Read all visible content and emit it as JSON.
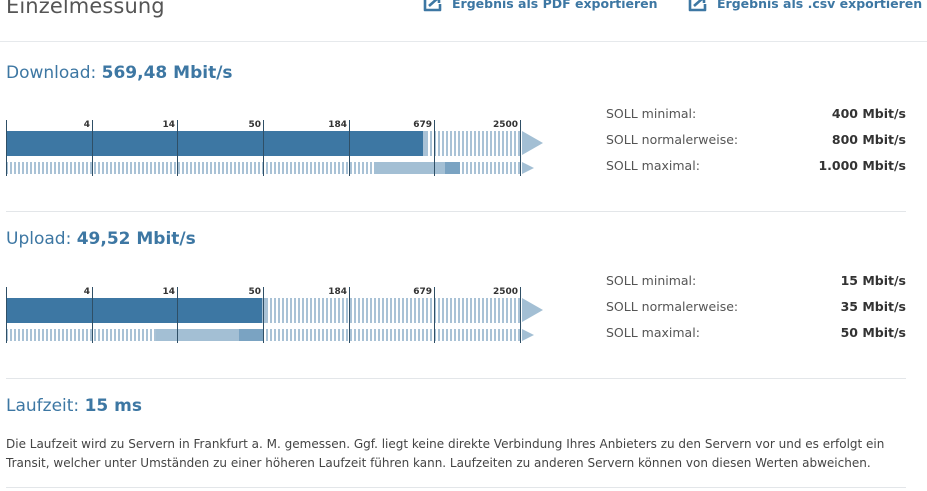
{
  "header": {
    "title": "Einzelmessung",
    "export_pdf": "Ergebnis als PDF exportieren",
    "export_csv": "Ergebnis als .csv exportieren"
  },
  "colors": {
    "accent": "#3d77a3",
    "light": "#a9c2d6",
    "range": "#a3bfd4",
    "range_dark": "#7aa3c2"
  },
  "scale_ticks": [
    "4",
    "14",
    "50",
    "184",
    "679",
    "2500"
  ],
  "download": {
    "label": "Download:",
    "value": "569,48 Mbit/s",
    "measured_mbit": 569.48,
    "soll": [
      {
        "label": "SOLL minimal:",
        "value": "400 Mbit/s",
        "mbit": 400
      },
      {
        "label": "SOLL normalerweise:",
        "value": "800 Mbit/s",
        "mbit": 800
      },
      {
        "label": "SOLL maximal:",
        "value": "1.000 Mbit/s",
        "mbit": 1000
      }
    ]
  },
  "upload": {
    "label": "Upload:",
    "value": "49,52 Mbit/s",
    "measured_mbit": 49.52,
    "soll": [
      {
        "label": "SOLL minimal:",
        "value": "15 Mbit/s",
        "mbit": 15
      },
      {
        "label": "SOLL normalerweise:",
        "value": "35 Mbit/s",
        "mbit": 35
      },
      {
        "label": "SOLL maximal:",
        "value": "50 Mbit/s",
        "mbit": 50
      }
    ]
  },
  "latency": {
    "label": "Laufzeit:",
    "value": "15 ms",
    "description": "Die Laufzeit wird zu Servern in Frankfurt a. M. gemessen. Ggf. liegt keine direkte Verbindung Ihres Anbieters zu den Servern vor und es erfolgt ein Transit, welcher unter Umständen zu einer höheren Laufzeit führen kann. Laufzeiten zu anderen Servern können von diesen Werten abweichen."
  }
}
